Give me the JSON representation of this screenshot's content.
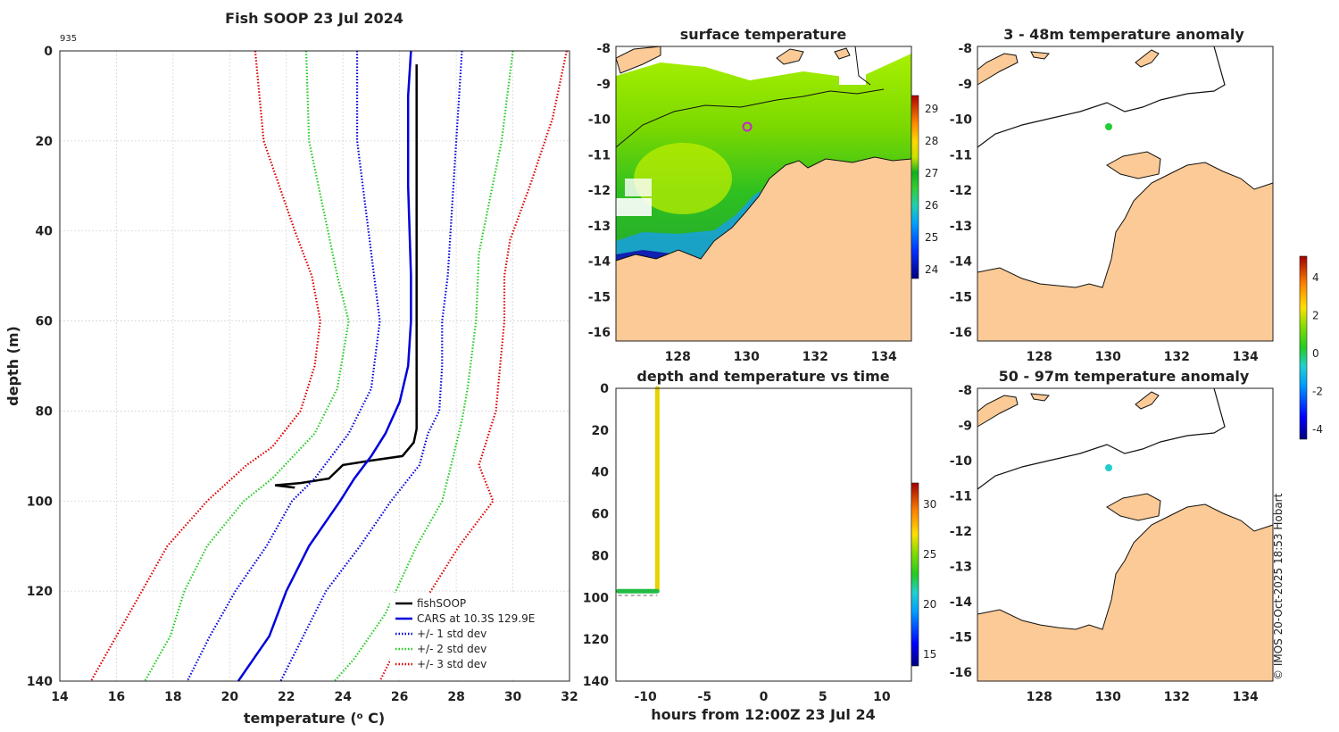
{
  "copyright": "© IMOS 20-Oct-2025 18:53 Hobart",
  "profile": {
    "title": "Fish SOOP 23 Jul 2024",
    "id_label": "935",
    "xlabel_main": "temperature (",
    "xlabel_sup": "o",
    "xlabel_tail": " C)",
    "ylabel": "depth (m)",
    "xlim": [
      14,
      32
    ],
    "ylim": [
      0,
      140
    ],
    "xticks": [
      "14",
      "16",
      "18",
      "20",
      "22",
      "24",
      "26",
      "28",
      "30",
      "32"
    ],
    "yticks": [
      "0",
      "20",
      "40",
      "60",
      "80",
      "100",
      "120",
      "140"
    ],
    "legend": [
      "fishSOOP",
      "CARS at 10.3S 129.9E",
      "+/- 1 std dev",
      "+/- 2 std dev",
      "+/- 3 std dev"
    ],
    "colors": {
      "fishsoop": "#000000",
      "cars": "#0000dd",
      "std1": "#0000dd",
      "std2": "#22cc22",
      "std3": "#dd0000"
    }
  },
  "sst": {
    "title": "surface temperature",
    "yticks": [
      "-8",
      "-9",
      "-10",
      "-11",
      "-12",
      "-13",
      "-14",
      "-15",
      "-16"
    ],
    "xticks": [
      "128",
      "130",
      "132",
      "134"
    ],
    "cbar_ticks": [
      "29",
      "28",
      "27",
      "26",
      "25",
      "24"
    ]
  },
  "anom1": {
    "title": "3 - 48m temperature anomaly",
    "yticks": [
      "-8",
      "-9",
      "-10",
      "-11",
      "-12",
      "-13",
      "-14",
      "-15",
      "-16"
    ],
    "xticks": [
      "128",
      "130",
      "132",
      "134"
    ]
  },
  "anom2": {
    "title": "50 - 97m temperature anomaly",
    "yticks": [
      "-8",
      "-9",
      "-10",
      "-11",
      "-12",
      "-13",
      "-14",
      "-15",
      "-16"
    ],
    "xticks": [
      "128",
      "130",
      "132",
      "134"
    ]
  },
  "anom_cbar": {
    "ticks": [
      "4",
      "2",
      "0",
      "-2",
      "-4"
    ]
  },
  "depthtime": {
    "title": "depth and temperature vs time",
    "xlabel": "hours from 12:00Z 23 Jul 24",
    "xticks": [
      "-10",
      "-5",
      "0",
      "5",
      "10"
    ],
    "yticks": [
      "0",
      "20",
      "40",
      "60",
      "80",
      "100",
      "120",
      "140"
    ],
    "cbar_ticks": [
      "30",
      "25",
      "20",
      "15"
    ]
  },
  "chart_data": [
    {
      "type": "line",
      "title": "Fish SOOP 23 Jul 2024",
      "xlabel": "temperature (o C)",
      "ylabel": "depth (m)",
      "xlim": [
        14,
        32
      ],
      "ylim": [
        140,
        0
      ],
      "series": [
        {
          "name": "fishSOOP",
          "style": "solid",
          "points": [
            [
              26.6,
              3
            ],
            [
              26.6,
              20
            ],
            [
              26.6,
              40
            ],
            [
              26.6,
              60
            ],
            [
              26.6,
              75
            ],
            [
              26.6,
              84
            ],
            [
              26.5,
              87
            ],
            [
              26.1,
              90
            ],
            [
              25.0,
              91
            ],
            [
              24.0,
              92
            ],
            [
              23.5,
              95
            ],
            [
              22.5,
              96
            ],
            [
              21.6,
              96.5
            ],
            [
              22.3,
              97
            ]
          ]
        },
        {
          "name": "CARS at 10.3S 129.9E",
          "style": "solid",
          "points": [
            [
              26.4,
              0
            ],
            [
              26.3,
              10
            ],
            [
              26.3,
              30
            ],
            [
              26.4,
              50
            ],
            [
              26.4,
              60
            ],
            [
              26.3,
              70
            ],
            [
              26.0,
              78
            ],
            [
              25.5,
              85
            ],
            [
              25.0,
              90
            ],
            [
              24.4,
              95
            ],
            [
              23.9,
              100
            ],
            [
              22.8,
              110
            ],
            [
              22.0,
              120
            ],
            [
              21.4,
              130
            ],
            [
              20.3,
              140
            ]
          ]
        },
        {
          "name": "+/- 1 std dev (lower)",
          "style": "dotted",
          "points": [
            [
              24.5,
              0
            ],
            [
              24.5,
              20
            ],
            [
              25.1,
              50
            ],
            [
              25.3,
              60
            ],
            [
              25.0,
              75
            ],
            [
              24.2,
              85
            ],
            [
              23.0,
              95
            ],
            [
              22.2,
              100
            ],
            [
              21.3,
              110
            ],
            [
              20.2,
              120
            ],
            [
              19.3,
              130
            ],
            [
              18.5,
              140
            ]
          ]
        },
        {
          "name": "+/- 1 std dev (upper)",
          "style": "dotted",
          "points": [
            [
              28.2,
              0
            ],
            [
              28.0,
              20
            ],
            [
              27.7,
              50
            ],
            [
              27.5,
              60
            ],
            [
              27.5,
              70
            ],
            [
              27.4,
              80
            ],
            [
              27.0,
              85
            ],
            [
              26.7,
              92
            ],
            [
              25.7,
              100
            ],
            [
              24.6,
              110
            ],
            [
              23.4,
              120
            ],
            [
              22.6,
              130
            ],
            [
              21.8,
              140
            ]
          ]
        },
        {
          "name": "+/- 2 std dev (lower)",
          "style": "dotted",
          "points": [
            [
              22.7,
              0
            ],
            [
              22.8,
              20
            ],
            [
              23.8,
              50
            ],
            [
              24.2,
              60
            ],
            [
              23.8,
              75
            ],
            [
              23.0,
              85
            ],
            [
              21.5,
              95
            ],
            [
              20.5,
              100
            ],
            [
              19.2,
              110
            ],
            [
              18.4,
              120
            ],
            [
              17.9,
              130
            ],
            [
              17.0,
              140
            ]
          ]
        },
        {
          "name": "+/- 2 std dev (upper)",
          "style": "dotted",
          "points": [
            [
              30.0,
              0
            ],
            [
              29.6,
              20
            ],
            [
              28.8,
              45
            ],
            [
              28.7,
              60
            ],
            [
              28.4,
              75
            ],
            [
              28.2,
              82
            ],
            [
              27.9,
              90
            ],
            [
              27.5,
              100
            ],
            [
              26.6,
              110
            ],
            [
              25.5,
              125
            ],
            [
              24.4,
              135
            ],
            [
              23.7,
              140
            ]
          ]
        },
        {
          "name": "+/- 3 std dev (lower)",
          "style": "dotted",
          "points": [
            [
              20.9,
              0
            ],
            [
              21.2,
              20
            ],
            [
              22.3,
              40
            ],
            [
              22.9,
              50
            ],
            [
              23.2,
              60
            ],
            [
              23.0,
              70
            ],
            [
              22.5,
              80
            ],
            [
              21.5,
              88
            ],
            [
              20.6,
              92
            ],
            [
              19.2,
              100
            ],
            [
              17.8,
              110
            ],
            [
              16.9,
              120
            ],
            [
              16.0,
              130
            ],
            [
              15.1,
              140
            ]
          ]
        },
        {
          "name": "+/- 3 std dev (upper)",
          "style": "dotted",
          "points": [
            [
              31.9,
              0
            ],
            [
              31.4,
              15
            ],
            [
              30.6,
              30
            ],
            [
              29.9,
              42
            ],
            [
              29.7,
              50
            ],
            [
              29.7,
              60
            ],
            [
              29.4,
              80
            ],
            [
              28.9,
              90
            ],
            [
              28.8,
              92
            ],
            [
              29.3,
              100
            ],
            [
              28.1,
              110
            ],
            [
              27.1,
              120
            ],
            [
              26.1,
              130
            ],
            [
              25.3,
              140
            ]
          ]
        }
      ]
    },
    {
      "type": "scatter",
      "title": "depth and temperature vs time",
      "xlabel": "hours from 12:00Z 23 Jul 24",
      "xlim": [
        -12.5,
        12.5
      ],
      "ylim": [
        140,
        0
      ],
      "series": [
        {
          "name": "vertical profile (≈27°C)",
          "x": -9.0,
          "depth_range": [
            0,
            96
          ],
          "color": "#e6d200"
        },
        {
          "name": "bottom segment (≈22°C)",
          "x_range": [
            -12.3,
            -9.0
          ],
          "depth": 97,
          "color": "#22bb44"
        }
      ]
    }
  ]
}
